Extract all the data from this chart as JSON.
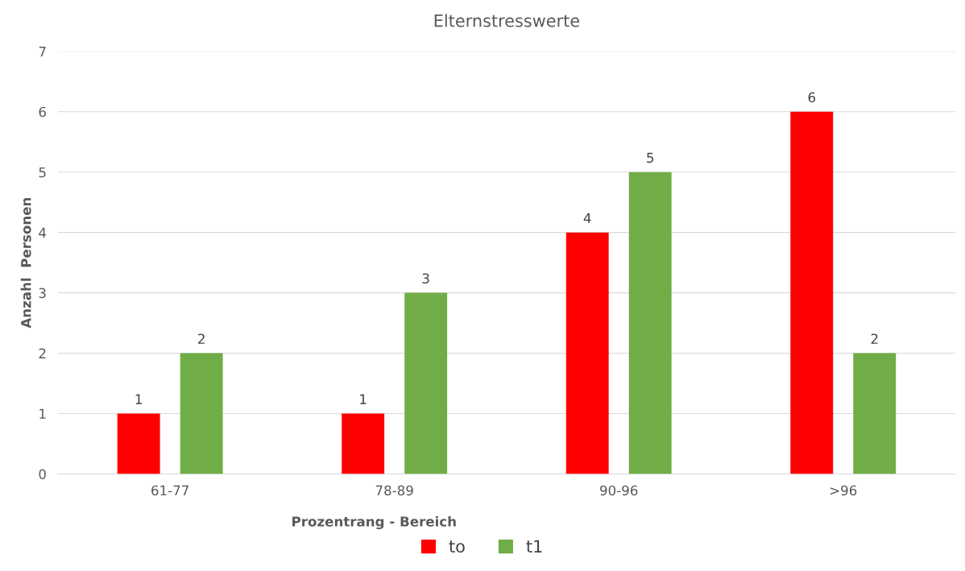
{
  "chart_data": {
    "type": "bar",
    "title": "Elternstresswerte",
    "xlabel": "Prozentrang - Bereich",
    "ylabel": "Anzahl  Personen",
    "categories": [
      "61-77",
      "78-89",
      "90-96",
      ">96"
    ],
    "series": [
      {
        "name": "to",
        "color": "#ff0000",
        "values": [
          1,
          1,
          4,
          6
        ]
      },
      {
        "name": "t1",
        "color": "#70ad47",
        "values": [
          2,
          3,
          5,
          2
        ]
      }
    ],
    "ylim": [
      0,
      7
    ],
    "yticks": [
      0,
      1,
      2,
      3,
      4,
      5,
      6,
      7
    ],
    "grid": "y",
    "legend": "bottom",
    "data_labels": true
  }
}
